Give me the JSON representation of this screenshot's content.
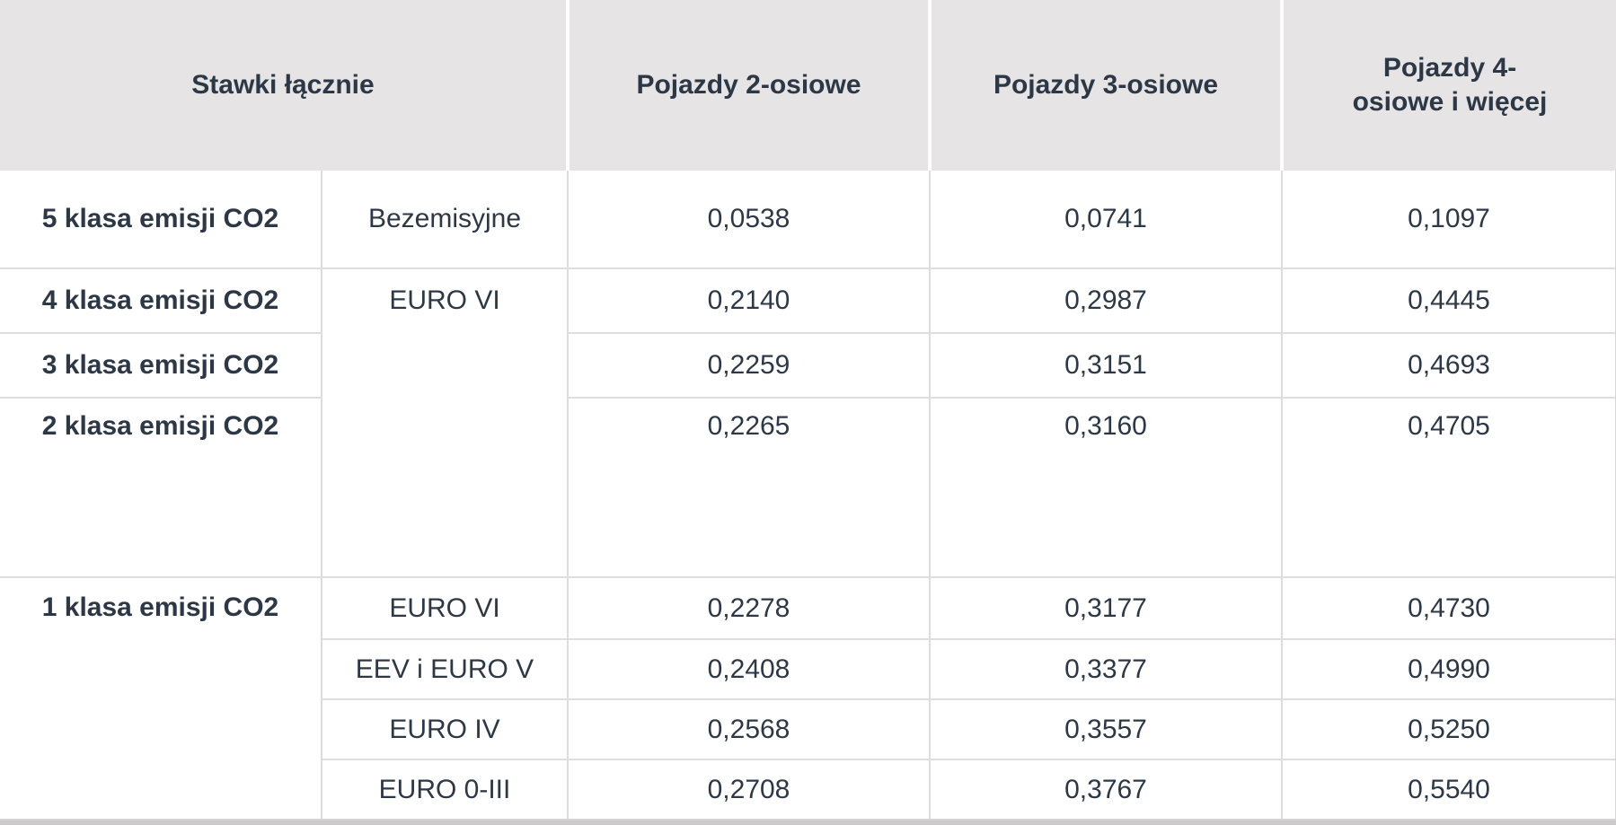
{
  "header": {
    "group_label": "Stawki łącznie",
    "col2": "Pojazdy 2-osiowe",
    "col3": "Pojazdy 3-osiowe",
    "col4": "Pojazdy 4-\nosiowe i więcej"
  },
  "rows": {
    "r5": {
      "label": "5 klasa emisji CO2",
      "euro": "Bezemisyjne",
      "v2": "0,0538",
      "v3": "0,0741",
      "v4": "0,1097"
    },
    "r4": {
      "label": "4 klasa emisji CO2",
      "euro": "EURO VI",
      "v2": "0,2140",
      "v3": "0,2987",
      "v4": "0,4445"
    },
    "r3": {
      "label": "3 klasa emisji CO2",
      "v2": "0,2259",
      "v3": "0,3151",
      "v4": "0,4693"
    },
    "r2": {
      "label": "2 klasa emisji CO2",
      "v2": "0,2265",
      "v3": "0,3160",
      "v4": "0,4705"
    },
    "r1a": {
      "label": "1 klasa emisji CO2",
      "euro": "EURO VI",
      "v2": "0,2278",
      "v3": "0,3177",
      "v4": "0,4730"
    },
    "r1b": {
      "euro": "EEV i EURO V",
      "v2": "0,2408",
      "v3": "0,3377",
      "v4": "0,4990"
    },
    "r1c": {
      "euro": "EURO IV",
      "v2": "0,2568",
      "v3": "0,3557",
      "v4": "0,5250"
    },
    "r1d": {
      "euro": "EURO 0-III",
      "v2": "0,2708",
      "v3": "0,3767",
      "v4": "0,5540"
    }
  },
  "colors": {
    "header_background": "#e6e4e5",
    "text": "#2d3847",
    "grid_line": "#dcdcdc",
    "bottom_strip": "#cccacb"
  }
}
